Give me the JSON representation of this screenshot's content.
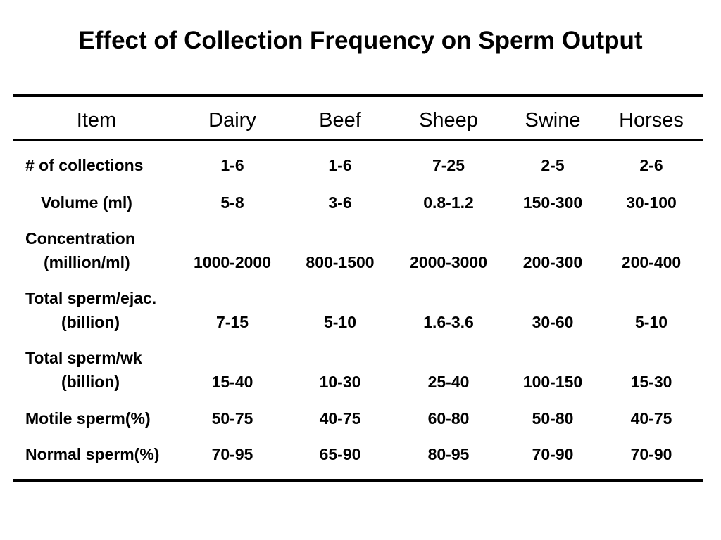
{
  "title": "Effect of Collection Frequency on Sperm Output",
  "table": {
    "headers": [
      "Item",
      "Dairy",
      "Beef",
      "Sheep",
      "Swine",
      "Horses"
    ],
    "rows": [
      {
        "label": [
          "# of collections"
        ],
        "values": [
          "1-6",
          "1-6",
          "7-25",
          "2-5",
          "2-6"
        ]
      },
      {
        "label": [
          "Volume (ml)"
        ],
        "values": [
          "5-8",
          "3-6",
          "0.8-1.2",
          "150-300",
          "30-100"
        ]
      },
      {
        "label": [
          "Concentration",
          "(million/ml)"
        ],
        "values": [
          "1000-2000",
          "800-1500",
          "2000-3000",
          "200-300",
          "200-400"
        ]
      },
      {
        "label": [
          "Total sperm/ejac.",
          "(billion)"
        ],
        "values": [
          "7-15",
          "5-10",
          "1.6-3.6",
          "30-60",
          "5-10"
        ]
      },
      {
        "label": [
          "Total sperm/wk",
          "(billion)"
        ],
        "values": [
          "15-40",
          "10-30",
          "25-40",
          "100-150",
          "15-30"
        ]
      },
      {
        "label": [
          "Motile sperm(%)"
        ],
        "values": [
          "50-75",
          "40-75",
          "60-80",
          "50-80",
          "40-75"
        ]
      },
      {
        "label": [
          "Normal sperm(%)"
        ],
        "values": [
          "70-95",
          "65-90",
          "80-95",
          "70-90",
          "70-90"
        ]
      }
    ]
  }
}
